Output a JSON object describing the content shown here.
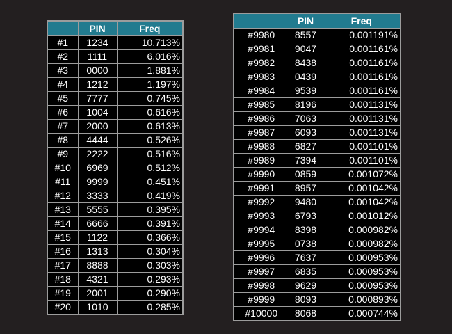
{
  "top_table": {
    "headers": [
      "",
      "PIN",
      "Freq"
    ],
    "rows": [
      [
        "#1",
        "1234",
        "10.713%"
      ],
      [
        "#2",
        "1111",
        "6.016%"
      ],
      [
        "#3",
        "0000",
        "1.881%"
      ],
      [
        "#4",
        "1212",
        "1.197%"
      ],
      [
        "#5",
        "7777",
        "0.745%"
      ],
      [
        "#6",
        "1004",
        "0.616%"
      ],
      [
        "#7",
        "2000",
        "0.613%"
      ],
      [
        "#8",
        "4444",
        "0.526%"
      ],
      [
        "#9",
        "2222",
        "0.516%"
      ],
      [
        "#10",
        "6969",
        "0.512%"
      ],
      [
        "#11",
        "9999",
        "0.451%"
      ],
      [
        "#12",
        "3333",
        "0.419%"
      ],
      [
        "#13",
        "5555",
        "0.395%"
      ],
      [
        "#14",
        "6666",
        "0.391%"
      ],
      [
        "#15",
        "1122",
        "0.366%"
      ],
      [
        "#16",
        "1313",
        "0.304%"
      ],
      [
        "#17",
        "8888",
        "0.303%"
      ],
      [
        "#18",
        "4321",
        "0.293%"
      ],
      [
        "#19",
        "2001",
        "0.290%"
      ],
      [
        "#20",
        "1010",
        "0.285%"
      ]
    ]
  },
  "bottom_table": {
    "headers": [
      "",
      "PIN",
      "Freq"
    ],
    "rows": [
      [
        "#9980",
        "8557",
        "0.001191%"
      ],
      [
        "#9981",
        "9047",
        "0.001161%"
      ],
      [
        "#9982",
        "8438",
        "0.001161%"
      ],
      [
        "#9983",
        "0439",
        "0.001161%"
      ],
      [
        "#9984",
        "9539",
        "0.001161%"
      ],
      [
        "#9985",
        "8196",
        "0.001131%"
      ],
      [
        "#9986",
        "7063",
        "0.001131%"
      ],
      [
        "#9987",
        "6093",
        "0.001131%"
      ],
      [
        "#9988",
        "6827",
        "0.001101%"
      ],
      [
        "#9989",
        "7394",
        "0.001101%"
      ],
      [
        "#9990",
        "0859",
        "0.001072%"
      ],
      [
        "#9991",
        "8957",
        "0.001042%"
      ],
      [
        "#9992",
        "9480",
        "0.001042%"
      ],
      [
        "#9993",
        "6793",
        "0.001012%"
      ],
      [
        "#9994",
        "8398",
        "0.000982%"
      ],
      [
        "#9995",
        "0738",
        "0.000982%"
      ],
      [
        "#9996",
        "7637",
        "0.000953%"
      ],
      [
        "#9997",
        "6835",
        "0.000953%"
      ],
      [
        "#9998",
        "9629",
        "0.000953%"
      ],
      [
        "#9999",
        "8093",
        "0.000893%"
      ],
      [
        "#10000",
        "8068",
        "0.000744%"
      ]
    ]
  },
  "colors": {
    "background": "#231f20",
    "header": "#227b8f",
    "cell": "#000000",
    "border": "#9c9c9c",
    "text": "#ffffff"
  }
}
